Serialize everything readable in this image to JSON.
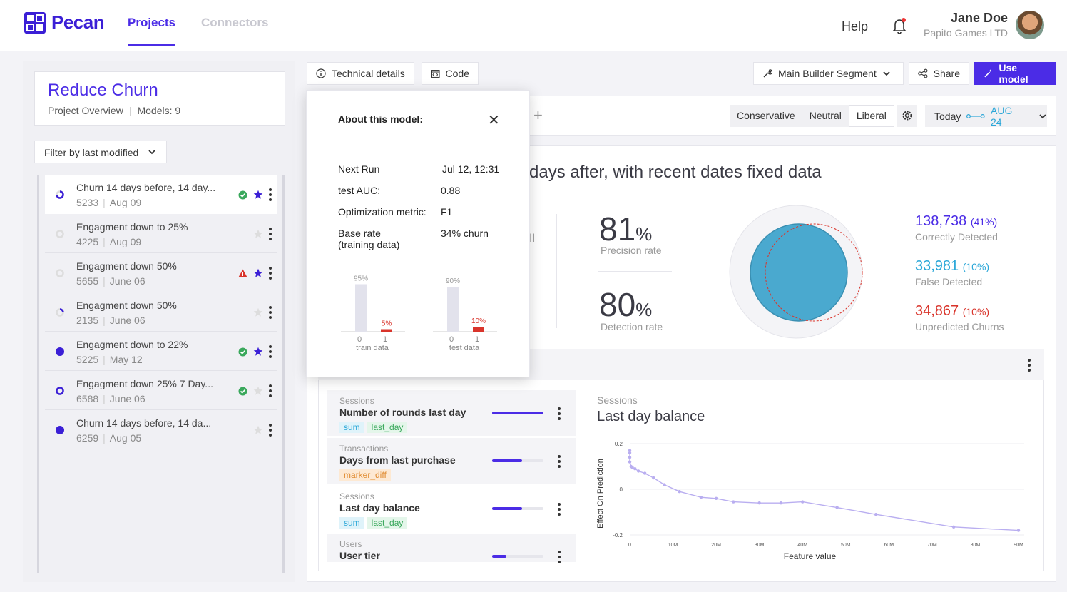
{
  "nav": {
    "brand": "Pecan",
    "tabs": [
      "Projects",
      "Connectors"
    ],
    "help": "Help",
    "user_name": "Jane Doe",
    "user_company": "Papito Games LTD"
  },
  "project": {
    "title": "Reduce Churn",
    "overview": "Project Overview",
    "models_count": "Models: 9",
    "filter_label": "Filter by last modified"
  },
  "models": [
    {
      "name": "Churn 14 days before, 14 day...",
      "id": "5233",
      "date": "Aug 09",
      "status": "partial",
      "ok": true,
      "starred": true
    },
    {
      "name": "Engagment down to 25%",
      "id": "4225",
      "date": "Aug 09",
      "status": "empty",
      "ok": false,
      "starred": false
    },
    {
      "name": "Engagment down 50%",
      "id": "5655",
      "date": "June 06",
      "status": "empty",
      "warn": true,
      "starred": true
    },
    {
      "name": "Engagment down 50%",
      "id": "2135",
      "date": "June 06",
      "status": "quarter",
      "ok": false,
      "starred": false
    },
    {
      "name": "Engagment down to 22%",
      "id": "5225",
      "date": "May 12",
      "status": "full",
      "ok": true,
      "starred": true
    },
    {
      "name": "Engagment down 25% 7 Day...",
      "id": "6588",
      "date": "June 06",
      "status": "ring",
      "ok": true,
      "starred": false
    },
    {
      "name": "Churn 14 days before, 14 da...",
      "id": "6259",
      "date": "Aug 05",
      "status": "full",
      "ok": false,
      "starred": false
    }
  ],
  "toolbar": {
    "technical_details": "Technical details",
    "code": "Code",
    "segment": "Main Builder Segment",
    "share": "Share",
    "use_model": "Use model"
  },
  "settings": {
    "modes": [
      "Conservative",
      "Neutral",
      "Liberal"
    ],
    "selected_mode": "Liberal",
    "date_today": "Today",
    "date_end": "AUG 24"
  },
  "summary": {
    "title_fragment": "days after, with recent dates fixed data",
    "partial_text": "ill",
    "precision_value": "81",
    "precision_unit": "%",
    "precision_label": "Precision rate",
    "detection_value": "80",
    "detection_unit": "%",
    "detection_label": "Detection rate",
    "correct": {
      "value": "138,738",
      "pct": "(41%)",
      "label": "Correctly Detected"
    },
    "false_det": {
      "value": "33,981",
      "pct": "(10%)",
      "label": "False Detected"
    },
    "unpredicted": {
      "value": "34,867",
      "pct": "(10%)",
      "label": "Unpredicted Churns"
    }
  },
  "features": [
    {
      "category": "Sessions",
      "name": "Number of rounds last day",
      "tags": [
        "sum",
        "last_day"
      ],
      "importance": 1.0
    },
    {
      "category": "Transactions",
      "name": "Days from last purchase",
      "tags": [
        "marker_diff"
      ],
      "importance": 0.58
    },
    {
      "category": "Sessions",
      "name": "Last day balance",
      "tags": [
        "sum",
        "last_day"
      ],
      "importance": 0.58
    },
    {
      "category": "Users",
      "name": "User tier",
      "tags": [],
      "importance": 0.28
    }
  ],
  "chart_data": {
    "type": "line",
    "category": "Sessions",
    "title": "Last day balance",
    "xlabel": "Feature value",
    "ylabel": "Effect On Prediction",
    "x_ticks": [
      "0",
      "10M",
      "20M",
      "30M",
      "40M",
      "50M",
      "60M",
      "70M",
      "80M",
      "90M"
    ],
    "y_ticks": [
      "+0.2",
      "0",
      "-0.2"
    ],
    "xlim": [
      0,
      90
    ],
    "ylim": [
      -0.2,
      0.2
    ],
    "x": [
      0,
      0,
      0,
      0,
      0.3,
      0.6,
      1.2,
      2,
      3.5,
      5.5,
      8,
      11.5,
      16.5,
      20,
      24,
      30,
      35,
      40,
      48,
      57,
      75,
      90
    ],
    "y": [
      0.17,
      0.16,
      0.14,
      0.12,
      0.1,
      0.095,
      0.09,
      0.08,
      0.07,
      0.05,
      0.02,
      -0.01,
      -0.035,
      -0.04,
      -0.055,
      -0.06,
      -0.06,
      -0.055,
      -0.08,
      -0.11,
      -0.165,
      -0.18
    ]
  },
  "popover": {
    "title": "About this model:",
    "rows": [
      {
        "label": "Next Run",
        "value": "Jul 12, 12:31"
      },
      {
        "label": "test AUC:",
        "value": "0.88"
      },
      {
        "label": "Optimization metric:",
        "value": "F1"
      },
      {
        "label": "Base rate",
        "label2": "(training data)",
        "value": "34% churn"
      }
    ],
    "mini_chart": {
      "groups": [
        {
          "name": "train data",
          "values": [
            95,
            5
          ],
          "labels": [
            "95%",
            "5%"
          ],
          "ticks": [
            "0",
            "1"
          ]
        },
        {
          "name": "test data",
          "values": [
            90,
            10
          ],
          "labels": [
            "90%",
            "10%"
          ],
          "ticks": [
            "0",
            "1"
          ]
        }
      ]
    }
  },
  "colors": {
    "brand": "#4b2ce6",
    "correct": "#4b2ce6",
    "false": "#2ba7d8",
    "unpredicted": "#d9342b"
  }
}
